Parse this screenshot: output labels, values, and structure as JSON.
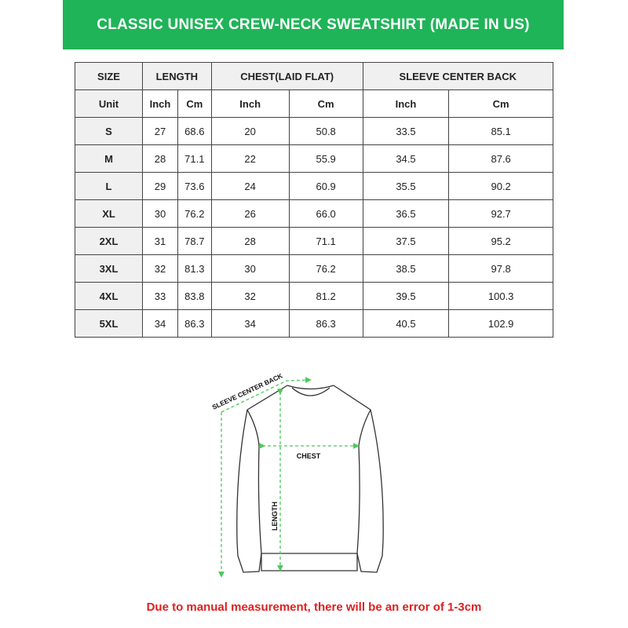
{
  "title": "CLASSIC UNISEX CREW-NECK SWEATSHIRT (MADE IN US)",
  "colors": {
    "banner": "#1fb458",
    "arrow": "#4cc85a",
    "note": "#e0201f"
  },
  "table": {
    "group_headers": [
      "SIZE",
      "LENGTH",
      "CHEST(LAID FLAT)",
      "SLEEVE CENTER BACK"
    ],
    "unit_row": [
      "Unit",
      "Inch",
      "Cm",
      "Inch",
      "Cm",
      "Inch",
      "Cm"
    ],
    "rows": [
      [
        "S",
        "27",
        "68.6",
        "20",
        "50.8",
        "33.5",
        "85.1"
      ],
      [
        "M",
        "28",
        "71.1",
        "22",
        "55.9",
        "34.5",
        "87.6"
      ],
      [
        "L",
        "29",
        "73.6",
        "24",
        "60.9",
        "35.5",
        "90.2"
      ],
      [
        "XL",
        "30",
        "76.2",
        "26",
        "66.0",
        "36.5",
        "92.7"
      ],
      [
        "2XL",
        "31",
        "78.7",
        "28",
        "71.1",
        "37.5",
        "95.2"
      ],
      [
        "3XL",
        "32",
        "81.3",
        "30",
        "76.2",
        "38.5",
        "97.8"
      ],
      [
        "4XL",
        "33",
        "83.8",
        "32",
        "81.2",
        "39.5",
        "100.3"
      ],
      [
        "5XL",
        "34",
        "86.3",
        "34",
        "86.3",
        "40.5",
        "102.9"
      ]
    ]
  },
  "diagram": {
    "sleeve_label": "SLEEVE CENTER BACK",
    "chest_label": "CHEST",
    "length_label": "LENGTH"
  },
  "note": "Due to manual measurement, there will be an error of 1-3cm"
}
